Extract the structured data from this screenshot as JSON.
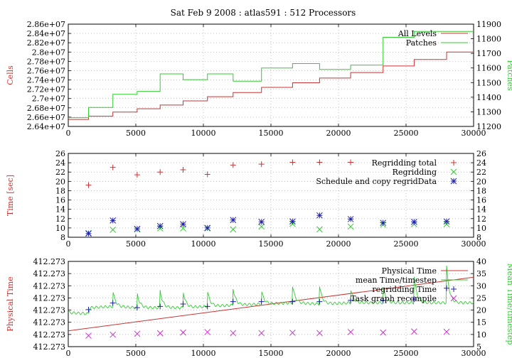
{
  "figure": {
    "title": "Sat Feb 9 2008 : atlas591 : 512 Processors"
  },
  "chart_data": [
    {
      "type": "line",
      "ylabel": "Cells",
      "y2label": "Patches",
      "xlim": [
        0,
        30000
      ],
      "ylim": [
        26400000,
        28600000
      ],
      "y2lim": [
        11200,
        11900
      ],
      "xticks": [
        "0",
        "5000",
        "10000",
        "15000",
        "20000",
        "25000",
        "30000"
      ],
      "yticks": [
        "2.64e+07",
        "2.66e+07",
        "2.68e+07",
        "2.7e+07",
        "2.72e+07",
        "2.74e+07",
        "2.76e+07",
        "2.78e+07",
        "2.8e+07",
        "2.82e+07",
        "2.84e+07",
        "2.86e+07"
      ],
      "y2ticks": [
        "11200",
        "11300",
        "11400",
        "11500",
        "11600",
        "11700",
        "11800",
        "11900"
      ],
      "grid": true,
      "legend_position": "top-right",
      "series": [
        {
          "name": "All Levels",
          "color": "#cc3333",
          "axis": "left",
          "step": true,
          "x": [
            0,
            1500,
            3300,
            5100,
            6800,
            8500,
            10300,
            12200,
            14300,
            16600,
            18600,
            20900,
            23300,
            25600,
            28000
          ],
          "y": [
            26550000,
            26620000,
            26710000,
            26780000,
            26860000,
            26950000,
            27040000,
            27130000,
            27240000,
            27340000,
            27440000,
            27560000,
            27700000,
            27840000,
            28000000
          ]
        },
        {
          "name": "Patches",
          "color": "#33cc33",
          "axis": "right",
          "step": true,
          "x": [
            0,
            1500,
            3300,
            5100,
            6800,
            8500,
            10300,
            12200,
            14300,
            16600,
            18600,
            20900,
            23300,
            25600,
            28000
          ],
          "y": [
            11260,
            11330,
            11420,
            11440,
            11560,
            11520,
            11560,
            11510,
            11600,
            11630,
            11590,
            11620,
            11810,
            11850,
            11850
          ]
        }
      ]
    },
    {
      "type": "scatter",
      "ylabel": "Time [sec]",
      "xlim": [
        0,
        30000
      ],
      "ylim": [
        8,
        26
      ],
      "y2lim": [
        8,
        26
      ],
      "xticks": [
        "0",
        "5000",
        "10000",
        "15000",
        "20000",
        "25000",
        "30000"
      ],
      "yticks": [
        "8",
        "10",
        "12",
        "14",
        "16",
        "18",
        "20",
        "22",
        "24",
        "26"
      ],
      "y2ticks": [
        "8",
        "10",
        "12",
        "14",
        "16",
        "18",
        "20",
        "22",
        "24",
        "26"
      ],
      "grid": true,
      "legend_position": "top-right",
      "series": [
        {
          "name": "Regridding total",
          "marker": "+",
          "color": "#cc3333",
          "x": [
            1500,
            3300,
            5100,
            6800,
            8500,
            10300,
            12200,
            14300,
            16600,
            18600,
            20900
          ],
          "y": [
            19.2,
            23.0,
            21.4,
            22.0,
            22.5,
            21.5,
            23.5,
            23.7,
            24.1,
            24.1,
            24.1
          ]
        },
        {
          "name": "Regridding",
          "marker": "x",
          "color": "#33cc33",
          "x": [
            1500,
            3300,
            5100,
            6800,
            8500,
            10300,
            12200,
            14300,
            16600,
            18600,
            20900,
            23300,
            25600,
            28000
          ],
          "y": [
            8.9,
            9.6,
            9.7,
            9.9,
            9.9,
            9.9,
            9.7,
            10.3,
            10.9,
            9.7,
            10.3,
            10.7,
            10.8,
            10.8
          ]
        },
        {
          "name": "Schedule and copy regridData",
          "marker": "*",
          "color": "#2222aa",
          "x": [
            1500,
            3300,
            5100,
            6800,
            8500,
            10300,
            12200,
            14300,
            16600,
            18600,
            20900,
            23300,
            25600,
            28000
          ],
          "y": [
            8.8,
            11.6,
            9.8,
            10.4,
            10.8,
            10.0,
            11.7,
            11.3,
            11.4,
            12.7,
            11.9,
            11.1,
            11.3,
            11.4
          ]
        }
      ]
    },
    {
      "type": "line",
      "ylabel": "Physical Time",
      "y2label": "Mean Time/timestep",
      "xlim": [
        0,
        30000
      ],
      "ylim": [
        0,
        7
      ],
      "y2lim": [
        5,
        40
      ],
      "xticks": [
        "0",
        "5000",
        "10000",
        "15000",
        "20000",
        "25000",
        "30000"
      ],
      "yticks": [
        "412.273",
        "412.273",
        "412.273",
        "412.273",
        "412.273",
        "412.273",
        "412.273",
        "412.273"
      ],
      "y2ticks": [
        "5",
        "10",
        "15",
        "20",
        "25",
        "30",
        "35",
        "40"
      ],
      "grid": true,
      "legend_position": "top-right",
      "series": [
        {
          "name": "Physical Time",
          "color": "#cc3333",
          "axis": "left",
          "x": [
            0,
            30000
          ],
          "y": [
            1.3,
            5.7
          ]
        },
        {
          "name": "mean Time/timestep",
          "color": "#33cc33",
          "axis": "right",
          "peaks_x": [
            3300,
            5100,
            6800,
            8500,
            10300,
            12200,
            14300,
            16600,
            18600,
            20900,
            23300,
            25600,
            28000
          ],
          "peaks_y": [
            28,
            27,
            28,
            28,
            28,
            29,
            28,
            30,
            30,
            29,
            30,
            34,
            38
          ],
          "baseline_x": [
            0,
            1500,
            1600,
            3300,
            5100,
            6800,
            8500,
            10300,
            12200,
            14300,
            16600,
            18600,
            20900,
            23300,
            25600,
            28000,
            30000
          ],
          "baseline_y": [
            19,
            18.5,
            21,
            21.5,
            21,
            21,
            21,
            21.5,
            22,
            22.5,
            23,
            22.5,
            23,
            23,
            23,
            23,
            23
          ]
        },
        {
          "name": "regridding Time",
          "marker": "+",
          "color": "#2222aa",
          "axis": "right",
          "x": [
            1500,
            3300,
            5100,
            6800,
            8500,
            10300,
            12200,
            14300,
            16600,
            18600,
            20900,
            23300,
            25600,
            28000
          ],
          "y": [
            20.2,
            22.9,
            21.0,
            21.5,
            22.5,
            21.5,
            23.5,
            23.5,
            23.5,
            23.5,
            24.0,
            24.0,
            24.5,
            29.0
          ]
        },
        {
          "name": "Task graph recompile",
          "marker": "x",
          "color": "#cc33cc",
          "axis": "right",
          "x": [
            1500,
            3300,
            5100,
            6800,
            8500,
            10300,
            12200,
            14300,
            16600,
            18600,
            20900,
            23300,
            25600,
            28000
          ],
          "y": [
            9.5,
            9.9,
            10.3,
            10.5,
            10.8,
            11.0,
            10.6,
            10.6,
            10.7,
            10.6,
            11.0,
            10.8,
            11.2,
            11.1
          ]
        }
      ]
    }
  ]
}
